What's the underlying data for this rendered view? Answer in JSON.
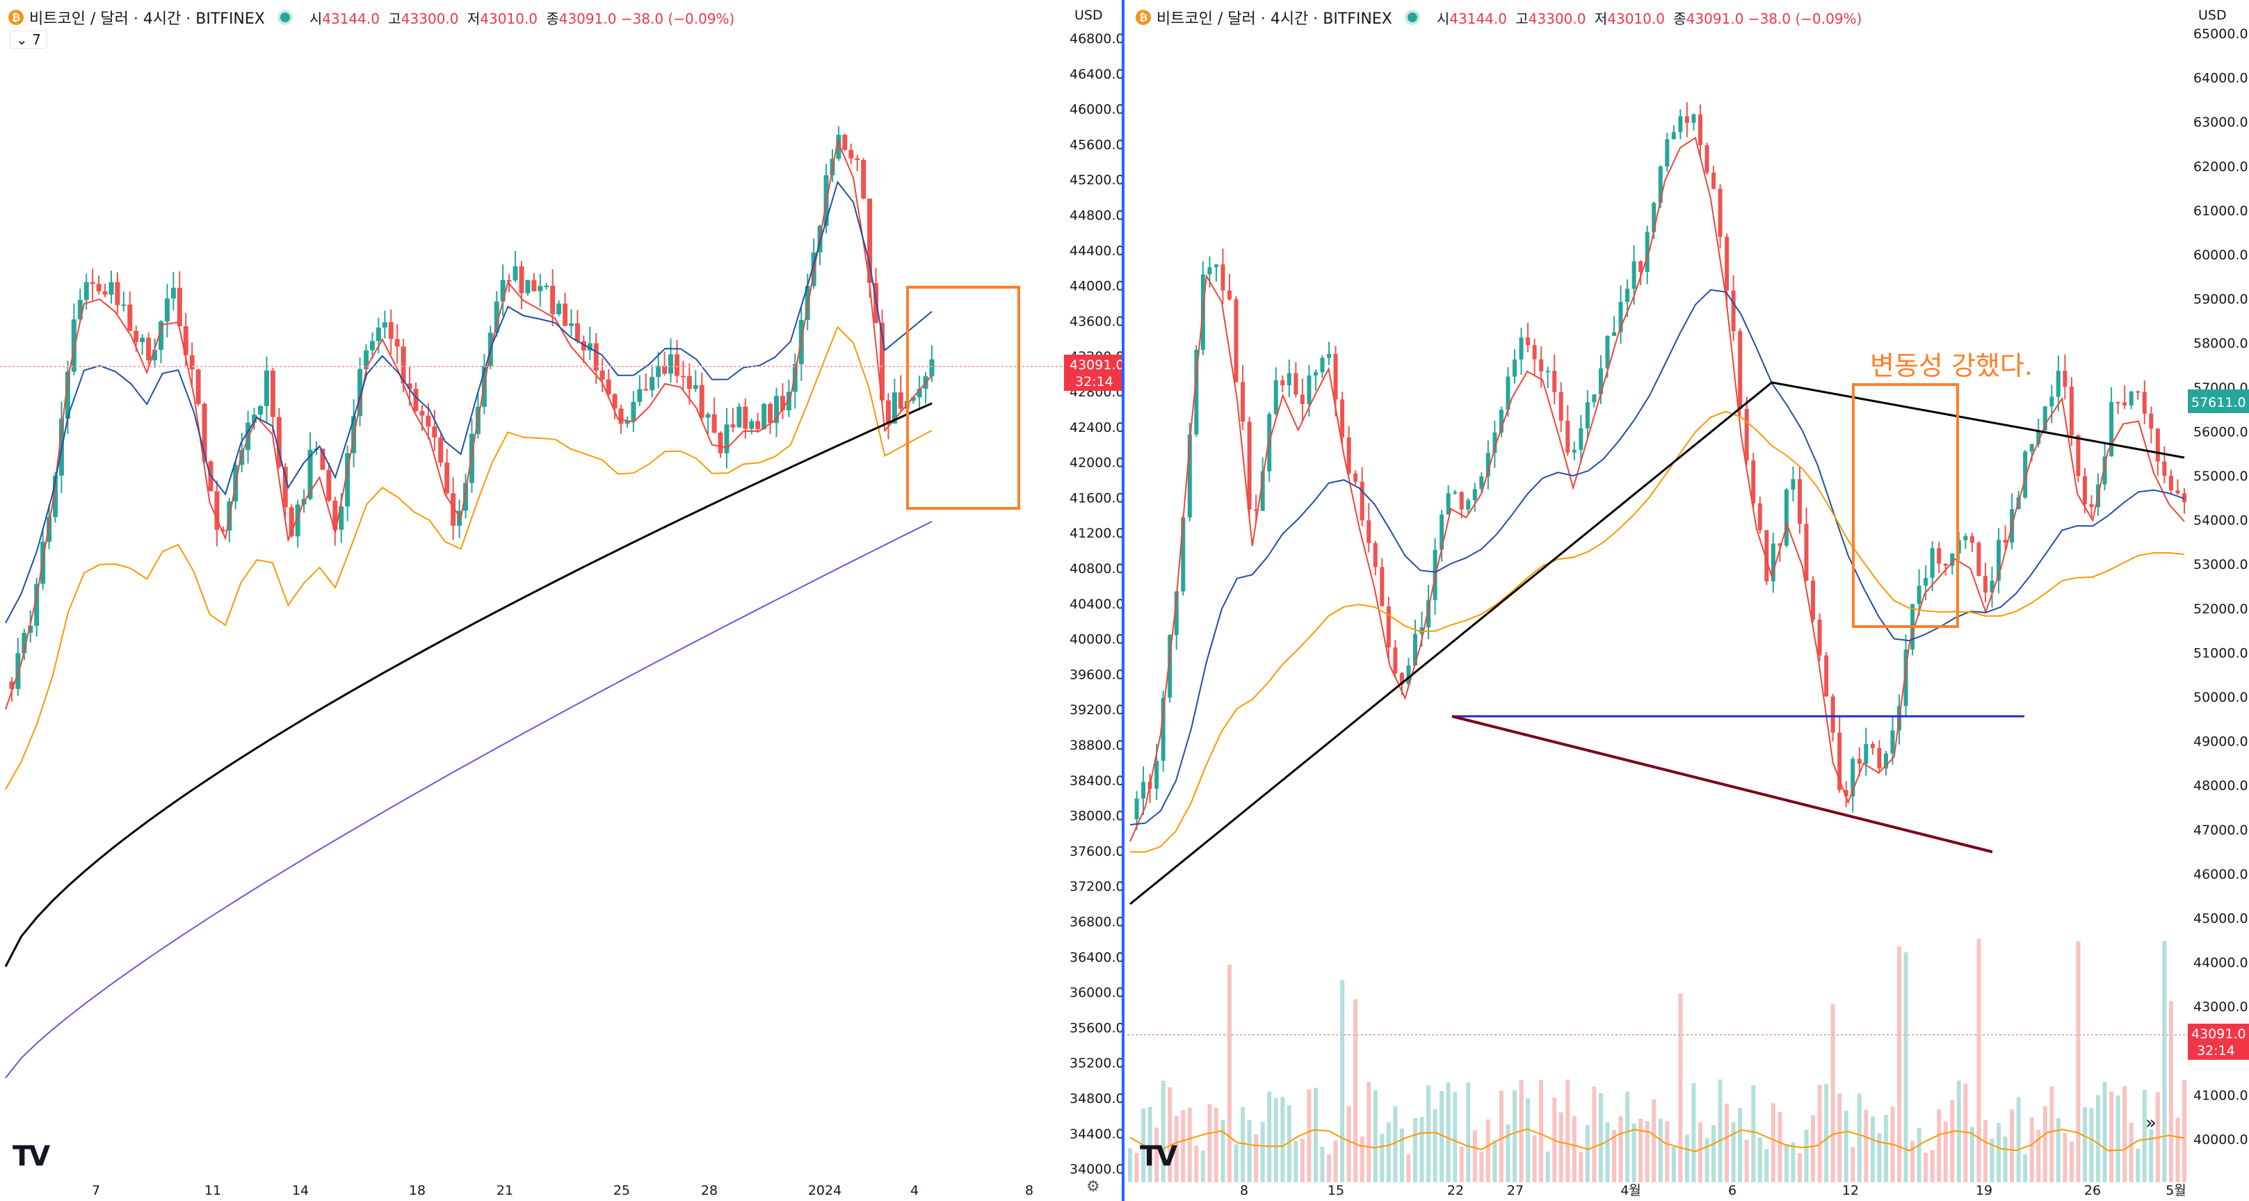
{
  "header": {
    "coin_glyph": "₿",
    "symbol": "비트코인 / 달러 · 4시간 · BITFINEX",
    "open_label": "시",
    "open": "43144.0",
    "high_label": "고",
    "high": "43300.0",
    "low_label": "저",
    "low": "43010.0",
    "close_label": "종",
    "close": "43091.0",
    "change": "−38.0 (−0.09%)"
  },
  "left_pane": {
    "indicator_toggle": "⌄ 7",
    "currency": "USD",
    "price_ticks": [
      "46800.0",
      "46400.0",
      "46000.0",
      "45600.0",
      "45200.0",
      "44800.0",
      "44400.0",
      "44000.0",
      "43600.0",
      "43200.0",
      "42800.0",
      "42400.0",
      "42000.0",
      "41600.0",
      "41200.0",
      "40800.0",
      "40400.0",
      "40000.0",
      "39600.0",
      "39200.0",
      "38800.0",
      "38400.0",
      "38000.0",
      "37600.0",
      "37200.0",
      "36800.0",
      "36400.0",
      "36000.0",
      "35600.0",
      "35200.0",
      "34800.0",
      "34400.0",
      "34000.0"
    ],
    "time_ticks": [
      "7",
      "11",
      "14",
      "18",
      "21",
      "25",
      "28",
      "2024",
      "4",
      "8"
    ],
    "last_price": "43091.0",
    "countdown": "32:14",
    "logo": "TV"
  },
  "right_pane": {
    "currency": "USD",
    "price_ticks": [
      "65000.0",
      "64000.0",
      "63000.0",
      "62000.0",
      "61000.0",
      "60000.0",
      "59000.0",
      "58000.0",
      "57000.0",
      "56000.0",
      "55000.0",
      "54000.0",
      "53000.0",
      "52000.0",
      "51000.0",
      "50000.0",
      "49000.0",
      "48000.0",
      "47000.0",
      "46000.0",
      "45000.0",
      "44000.0",
      "43000.0",
      "42000.0",
      "41000.0",
      "40000.0"
    ],
    "time_ticks": [
      "8",
      "15",
      "22",
      "27",
      "4월",
      "6",
      "12",
      "19",
      "26",
      "5월"
    ],
    "mid_price": "57611.0",
    "last_price": "43091.0",
    "countdown": "32:14",
    "annotation": "변동성 강했다.",
    "logo": "TV",
    "scroll_glyph": "»"
  },
  "colors": {
    "up": "#26a69a",
    "down": "#ef5350",
    "ma_red": "#f44336",
    "ma_blue": "#1e4fa8",
    "ma_orange": "#ff9800",
    "ma_black": "#000000",
    "ma_purple": "#7b4fd6",
    "box": "#ff7f27",
    "support": "#1f2bd4",
    "trend": "#7a0019"
  }
}
